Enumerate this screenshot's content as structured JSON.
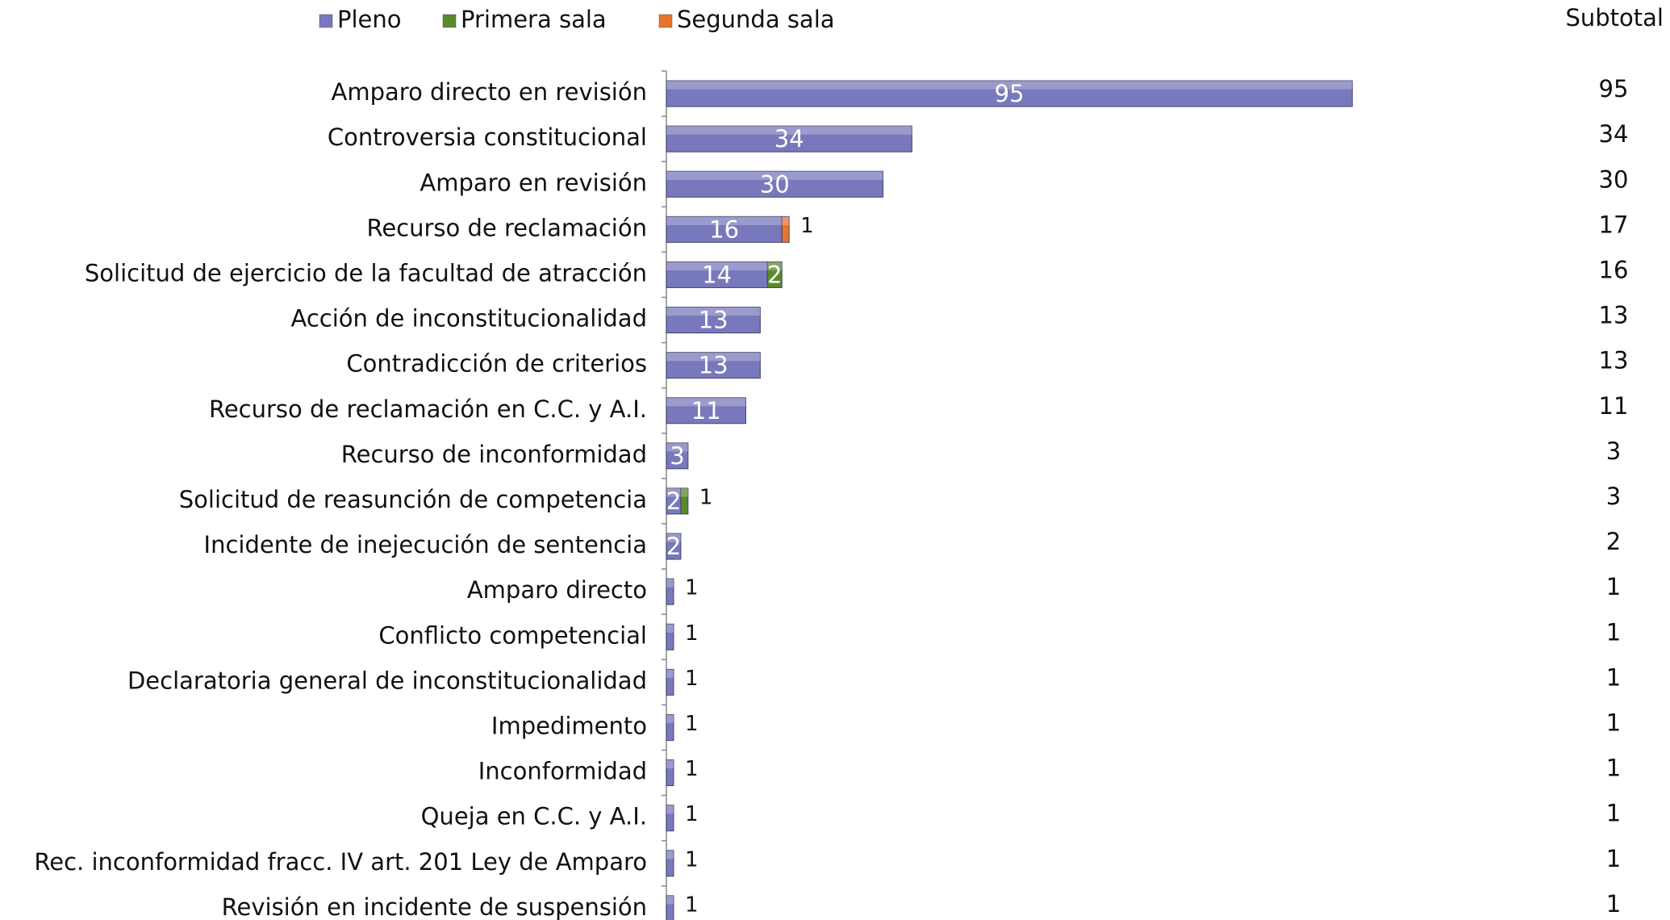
{
  "chart_data": {
    "type": "bar",
    "orientation": "horizontal",
    "stacked": true,
    "categories": [
      "Amparo directo en revisión",
      "Controversia constitucional",
      "Amparo en revisión",
      "Recurso de reclamación",
      "Solicitud de ejercicio de la facultad de atracción",
      "Acción de inconstitucionalidad",
      "Contradicción de criterios",
      "Recurso de reclamación en C.C. y A.I.",
      "Recurso de inconformidad",
      "Solicitud de reasunción de competencia",
      "Incidente de inejecución de sentencia",
      "Amparo directo",
      "Conflicto competencial",
      "Declaratoria general de inconstitucionalidad",
      "Impedimento",
      "Inconformidad",
      "Queja en C.C. y A.I.",
      "Rec. inconformidad fracc. IV art. 201 Ley de Amparo",
      "Revisión en incidente de suspensión"
    ],
    "series": [
      {
        "name": "Pleno",
        "color": "#7878bc",
        "values": [
          95,
          34,
          30,
          16,
          14,
          13,
          13,
          11,
          3,
          2,
          2,
          1,
          1,
          1,
          1,
          1,
          1,
          1,
          1
        ]
      },
      {
        "name": "Primera sala",
        "color": "#5a8a2c",
        "values": [
          null,
          null,
          null,
          null,
          2,
          null,
          null,
          null,
          null,
          1,
          null,
          null,
          null,
          null,
          null,
          null,
          null,
          null,
          null
        ]
      },
      {
        "name": "Segunda sala",
        "color": "#e8742a",
        "values": [
          null,
          null,
          null,
          1,
          null,
          null,
          null,
          null,
          null,
          null,
          null,
          null,
          null,
          null,
          null,
          null,
          null,
          null,
          null
        ]
      }
    ],
    "subtotal_label": "Subtotal",
    "subtotal_values": [
      95,
      34,
      30,
      17,
      16,
      13,
      13,
      11,
      3,
      3,
      2,
      1,
      1,
      1,
      1,
      1,
      1,
      1,
      1
    ],
    "xlim": [
      0,
      100
    ],
    "legend": "top"
  }
}
